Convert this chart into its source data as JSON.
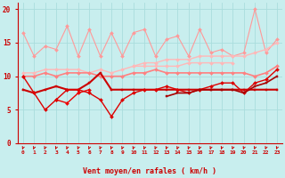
{
  "x": [
    0,
    1,
    2,
    3,
    4,
    5,
    6,
    7,
    8,
    9,
    10,
    11,
    12,
    13,
    14,
    15,
    16,
    17,
    18,
    19,
    20,
    21,
    22,
    23
  ],
  "series": [
    {
      "name": "spiky_light_pink",
      "color": "#FF9999",
      "linewidth": 0.8,
      "marker": "D",
      "markersize": 2.0,
      "y": [
        16.5,
        13.0,
        14.5,
        14.0,
        17.5,
        13.0,
        17.0,
        13.0,
        16.5,
        13.0,
        16.5,
        17.0,
        13.0,
        15.5,
        16.0,
        13.0,
        17.0,
        13.5,
        14.0,
        13.0,
        13.5,
        20.0,
        13.5,
        15.5
      ]
    },
    {
      "name": "trend_light_pink_top",
      "color": "#FFB8B8",
      "linewidth": 1.0,
      "marker": "D",
      "markersize": 2.0,
      "y": [
        null,
        null,
        null,
        null,
        null,
        null,
        null,
        null,
        null,
        null,
        11.5,
        12.0,
        12.0,
        12.5,
        12.5,
        12.5,
        13.0,
        13.0,
        13.0,
        13.0,
        13.0,
        13.5,
        14.0,
        15.0
      ]
    },
    {
      "name": "flat_light_pink_lower",
      "color": "#FFB8B8",
      "linewidth": 1.0,
      "marker": "D",
      "markersize": 2.0,
      "y": [
        10.5,
        10.5,
        11.0,
        11.0,
        11.0,
        11.0,
        10.5,
        11.0,
        10.5,
        11.0,
        11.5,
        11.5,
        11.5,
        11.5,
        11.5,
        12.0,
        12.0,
        12.0,
        12.0,
        12.0,
        null,
        null,
        null,
        null
      ]
    },
    {
      "name": "flat_medium_pink",
      "color": "#FF8080",
      "linewidth": 1.2,
      "marker": "D",
      "markersize": 2.0,
      "y": [
        10.0,
        10.0,
        10.5,
        10.0,
        10.5,
        10.5,
        10.5,
        10.0,
        10.0,
        10.0,
        10.5,
        10.5,
        11.0,
        10.5,
        10.5,
        10.5,
        10.5,
        10.5,
        10.5,
        10.5,
        10.5,
        10.0,
        10.5,
        11.5
      ]
    },
    {
      "name": "dark_red_flat",
      "color": "#CC0000",
      "linewidth": 1.5,
      "marker": "s",
      "markersize": 2.0,
      "y": [
        8.0,
        7.5,
        8.0,
        8.5,
        8.0,
        8.0,
        9.0,
        10.5,
        8.0,
        8.0,
        8.0,
        8.0,
        8.0,
        8.0,
        8.0,
        8.0,
        8.0,
        8.0,
        8.0,
        8.0,
        8.0,
        8.0,
        8.0,
        8.0
      ]
    },
    {
      "name": "red_zigzag_lower",
      "color": "#EE0000",
      "linewidth": 1.0,
      "marker": "D",
      "markersize": 2.0,
      "y": [
        null,
        null,
        null,
        6.5,
        6.0,
        7.5,
        8.0,
        null,
        null,
        null,
        null,
        null,
        null,
        null,
        null,
        null,
        null,
        null,
        null,
        null,
        null,
        null,
        null,
        null
      ]
    },
    {
      "name": "red_low_rising",
      "color": "#DD0000",
      "linewidth": 1.0,
      "marker": "D",
      "markersize": 2.0,
      "y": [
        10.0,
        7.5,
        5.0,
        6.5,
        8.0,
        8.0,
        7.5,
        6.5,
        4.0,
        6.5,
        7.5,
        8.0,
        8.0,
        8.5,
        8.0,
        7.5,
        8.0,
        8.5,
        9.0,
        9.0,
        7.5,
        9.0,
        9.5,
        11.0
      ]
    },
    {
      "name": "darkest_red_rising",
      "color": "#AA0000",
      "linewidth": 1.2,
      "marker": "s",
      "markersize": 2.0,
      "y": [
        null,
        null,
        null,
        null,
        null,
        null,
        null,
        null,
        null,
        null,
        null,
        null,
        null,
        7.0,
        7.5,
        7.5,
        8.0,
        8.0,
        8.0,
        8.0,
        7.5,
        8.5,
        9.0,
        10.0
      ]
    }
  ],
  "xlabel": "Vent moyen/en rafales ( km/h )",
  "ylim": [
    0,
    21
  ],
  "xlim": [
    -0.5,
    23.5
  ],
  "yticks": [
    0,
    5,
    10,
    15,
    20
  ],
  "xticks": [
    0,
    1,
    2,
    3,
    4,
    5,
    6,
    7,
    8,
    9,
    10,
    11,
    12,
    13,
    14,
    15,
    16,
    17,
    18,
    19,
    20,
    21,
    22,
    23
  ],
  "bg_color": "#C8EEEE",
  "grid_color": "#AADDDD",
  "tick_color": "#CC0000",
  "label_color": "#CC0000"
}
